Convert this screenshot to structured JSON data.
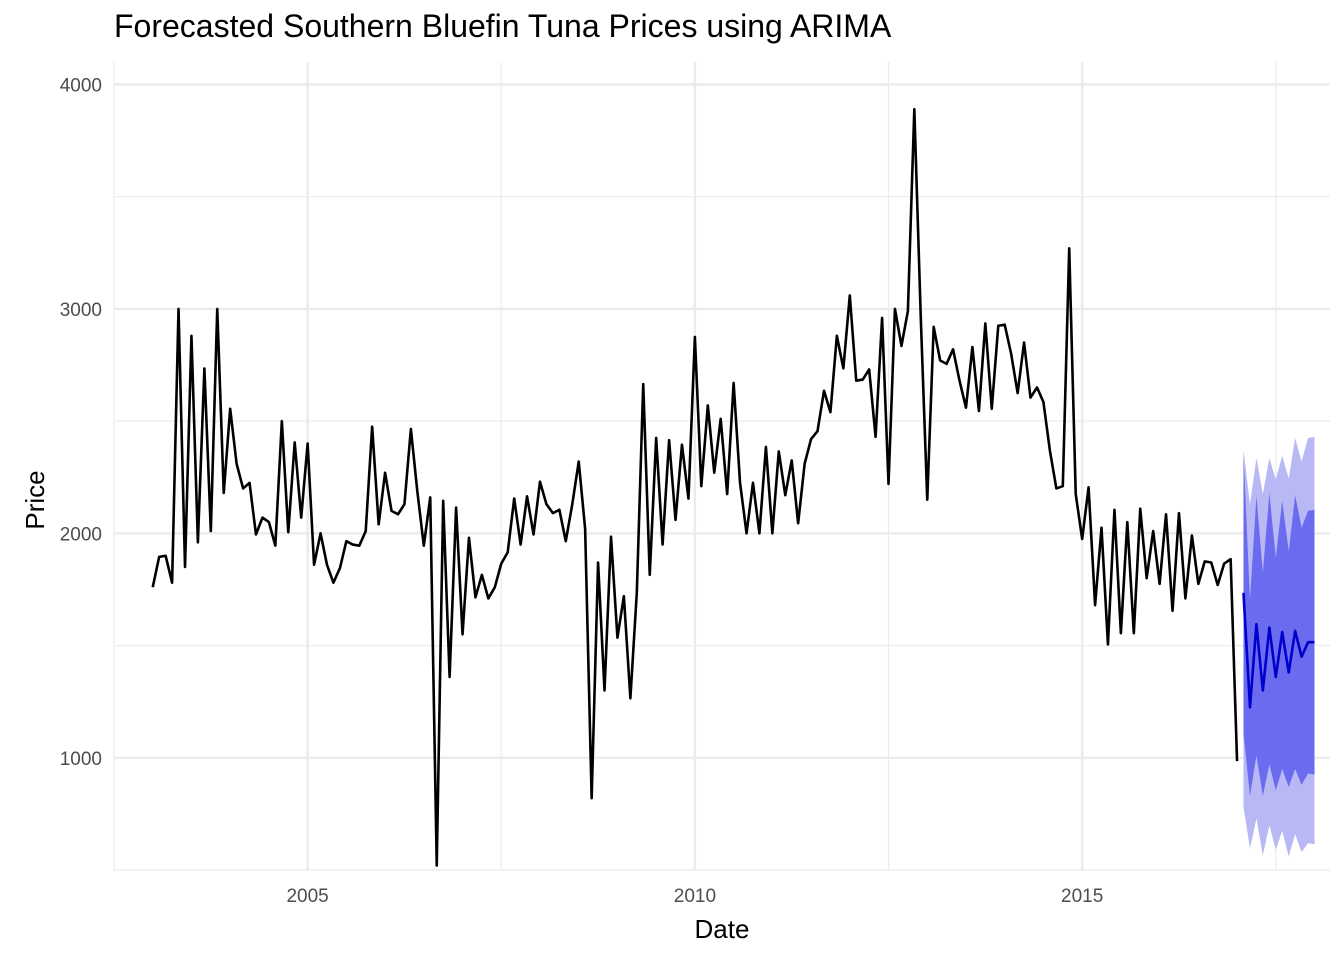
{
  "chart_data": {
    "type": "line",
    "title": "Forecasted Southern Bluefin Tuna Prices using ARIMA",
    "xlabel": "Date",
    "ylabel": "Price",
    "xlim": [
      2002.5,
      2018.2
    ],
    "ylim": [
      500,
      4100
    ],
    "x_ticks": [
      2005,
      2010,
      2015
    ],
    "y_ticks": [
      1000,
      2000,
      3000,
      4000
    ],
    "grid": true,
    "colors": {
      "history": "#000000",
      "forecast": "#0000cc",
      "band80": "#6b6bf0",
      "band95": "#b8b8f5"
    },
    "series": [
      {
        "role": "history",
        "x": [
          2003.0,
          2003.083,
          2003.167,
          2003.25,
          2003.333,
          2003.417,
          2003.5,
          2003.583,
          2003.667,
          2003.75,
          2003.833,
          2003.917,
          2004.0,
          2004.083,
          2004.167,
          2004.25,
          2004.333,
          2004.417,
          2004.5,
          2004.583,
          2004.667,
          2004.75,
          2004.833,
          2004.917,
          2005.0,
          2005.083,
          2005.167,
          2005.25,
          2005.333,
          2005.417,
          2005.5,
          2005.583,
          2005.667,
          2005.75,
          2005.833,
          2005.917,
          2006.0,
          2006.083,
          2006.167,
          2006.25,
          2006.333,
          2006.417,
          2006.5,
          2006.583,
          2006.667,
          2006.75,
          2006.833,
          2006.917,
          2007.0,
          2007.083,
          2007.167,
          2007.25,
          2007.333,
          2007.417,
          2007.5,
          2007.583,
          2007.667,
          2007.75,
          2007.833,
          2007.917,
          2008.0,
          2008.083,
          2008.167,
          2008.25,
          2008.333,
          2008.417,
          2008.5,
          2008.583,
          2008.667,
          2008.75,
          2008.833,
          2008.917,
          2009.0,
          2009.083,
          2009.167,
          2009.25,
          2009.333,
          2009.417,
          2009.5,
          2009.583,
          2009.667,
          2009.75,
          2009.833,
          2009.917,
          2010.0,
          2010.083,
          2010.167,
          2010.25,
          2010.333,
          2010.417,
          2010.5,
          2010.583,
          2010.667,
          2010.75,
          2010.833,
          2010.917,
          2011.0,
          2011.083,
          2011.167,
          2011.25,
          2011.333,
          2011.417,
          2011.5,
          2011.583,
          2011.667,
          2011.75,
          2011.833,
          2011.917,
          2012.0,
          2012.083,
          2012.167,
          2012.25,
          2012.333,
          2012.417,
          2012.5,
          2012.583,
          2012.667,
          2012.75,
          2012.833,
          2012.917,
          2013.0,
          2013.083,
          2013.167,
          2013.25,
          2013.333,
          2013.417,
          2013.5,
          2013.583,
          2013.667,
          2013.75,
          2013.833,
          2013.917,
          2014.0,
          2014.083,
          2014.167,
          2014.25,
          2014.333,
          2014.417,
          2014.5,
          2014.583,
          2014.667,
          2014.75,
          2014.833,
          2014.917,
          2015.0,
          2015.083,
          2015.167,
          2015.25,
          2015.333,
          2015.417,
          2015.5,
          2015.583,
          2015.667,
          2015.75,
          2015.833,
          2015.917,
          2016.0,
          2016.083,
          2016.167,
          2016.25,
          2016.333,
          2016.417,
          2016.5,
          2016.583,
          2016.667,
          2016.75,
          2016.833,
          2016.917,
          2017.0
        ],
        "y": [
          1760,
          1895,
          1900,
          1780,
          3000,
          1850,
          2880,
          1960,
          2735,
          2010,
          3000,
          2180,
          2555,
          2310,
          2200,
          2225,
          1995,
          2070,
          2050,
          1945,
          2500,
          2005,
          2405,
          2070,
          2400,
          1860,
          2000,
          1860,
          1780,
          1845,
          1965,
          1950,
          1945,
          2010,
          2475,
          2040,
          2270,
          2100,
          2085,
          2130,
          2465,
          2185,
          1945,
          2160,
          520,
          2145,
          1360,
          2115,
          1550,
          1980,
          1715,
          1815,
          1710,
          1760,
          1865,
          1915,
          2155,
          1950,
          2165,
          1995,
          2230,
          2130,
          2090,
          2105,
          1965,
          2130,
          2320,
          2020,
          820,
          1870,
          1300,
          1985,
          1535,
          1720,
          1265,
          1735,
          2665,
          1815,
          2425,
          1950,
          2415,
          2060,
          2395,
          2155,
          2875,
          2210,
          2570,
          2270,
          2510,
          2175,
          2670,
          2225,
          2000,
          2225,
          2000,
          2385,
          2000,
          2365,
          2170,
          2325,
          2045,
          2310,
          2420,
          2455,
          2635,
          2540,
          2880,
          2735,
          3060,
          2680,
          2685,
          2730,
          2430,
          2960,
          2220,
          3000,
          2835,
          2990,
          3890,
          2955,
          2150,
          2920,
          2770,
          2755,
          2820,
          2680,
          2560,
          2830,
          2545,
          2935,
          2555,
          2925,
          2930,
          2800,
          2625,
          2850,
          2605,
          2650,
          2585,
          2370,
          2200,
          2210,
          3270,
          2175,
          1975,
          2205,
          1680,
          2025,
          1505,
          2105,
          1555,
          2050,
          1555,
          2110,
          1800,
          2010,
          1775,
          2085,
          1655,
          2090,
          1710,
          1990,
          1775,
          1875,
          1870,
          1770,
          1865,
          1885,
          985
        ]
      },
      {
        "role": "forecast",
        "x": [
          2017.083,
          2017.167,
          2017.25,
          2017.333,
          2017.417,
          2017.5,
          2017.583,
          2017.667,
          2017.75,
          2017.833,
          2017.917,
          2018.0
        ],
        "y": [
          1735,
          1225,
          1595,
          1300,
          1580,
          1360,
          1560,
          1380,
          1565,
          1450,
          1515,
          1515
        ],
        "lo80": [
          1110,
          830,
          1010,
          830,
          970,
          855,
          950,
          870,
          950,
          880,
          930,
          925
        ],
        "hi80": [
          2355,
          1705,
          2165,
          1825,
          2180,
          1890,
          2145,
          1920,
          2170,
          2025,
          2100,
          2105
        ],
        "lo95": [
          780,
          595,
          730,
          565,
          700,
          590,
          675,
          560,
          660,
          580,
          620,
          615
        ],
        "hi95": [
          2370,
          2130,
          2335,
          2175,
          2335,
          2240,
          2345,
          2245,
          2425,
          2320,
          2425,
          2430
        ]
      }
    ]
  }
}
